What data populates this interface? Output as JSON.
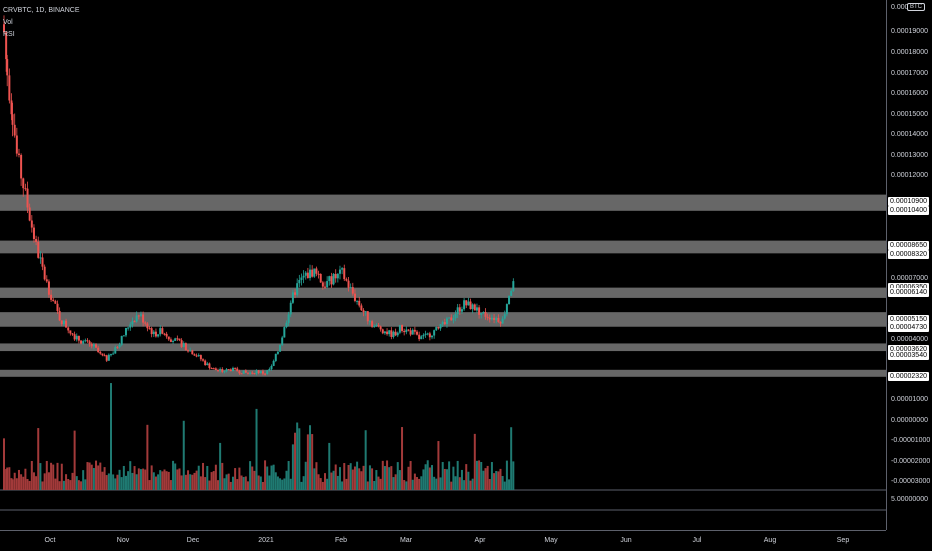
{
  "legend": {
    "symbol_line": "CRVBTC, 1D, BINANCE",
    "volume_label": "Vol",
    "rsi_label": "RSI"
  },
  "currency_badge": "BTC",
  "price_axis": {
    "ticks": [
      "0.00019000",
      "0.00018000",
      "0.00017000",
      "0.00016000",
      "0.00015000",
      "0.00014000",
      "0.00013000",
      "0.00012000",
      "0.00007000",
      "0.00004000",
      "0.00001000",
      "0.00000000",
      "-0.00001000",
      "-0.00002000",
      "-0.00003000",
      "5.00000000"
    ],
    "top_label": "0.0002",
    "highlighted": [
      "0.00010900",
      "0.00010400",
      "0.00008650",
      "0.00008320",
      "0.00006350",
      "0.00006140",
      "0.00005150",
      "0.00004730",
      "0.00003620",
      "0.00003540",
      "0.00002320"
    ]
  },
  "time_axis": [
    "Oct",
    "Nov",
    "Dec",
    "2021",
    "Feb",
    "Mar",
    "Apr",
    "May",
    "Jun",
    "Jul",
    "Aug",
    "Sep"
  ],
  "colors": {
    "up": "#26a69a",
    "down": "#ef5350",
    "zone": "#8a8a8a",
    "up_vol": "#1f7a72",
    "down_vol": "#a33a3a"
  },
  "zones": [
    {
      "top": 0.000109,
      "bottom": 0.000104
    },
    {
      "top": 8.65e-05,
      "bottom": 8.32e-05
    },
    {
      "top": 6.35e-05,
      "bottom": 6.14e-05
    },
    {
      "top": 5.15e-05,
      "bottom": 4.73e-05
    },
    {
      "top": 3.62e-05,
      "bottom": 3.54e-05
    },
    {
      "top": 2.33e-05,
      "bottom": 2.32e-05
    }
  ],
  "chart_data": {
    "type": "candlestick",
    "symbol": "CRVBTC",
    "interval": "1D",
    "exchange": "BINANCE",
    "x_categories": [
      "Oct",
      "Nov",
      "Dec",
      "2021",
      "Feb",
      "Mar",
      "Apr",
      "May",
      "Jun",
      "Jul",
      "Aug",
      "Sep"
    ],
    "close_waypoints": [
      [
        0,
        0.00019
      ],
      [
        3,
        0.00017
      ],
      [
        8,
        0.00015
      ],
      [
        12,
        0.00013
      ],
      [
        18,
        0.000115
      ],
      [
        24,
        0.0001
      ],
      [
        30,
        8.5e-05
      ],
      [
        38,
        7e-05
      ],
      [
        46,
        5.8e-05
      ],
      [
        52,
        5e-05
      ],
      [
        60,
        4.5e-05
      ],
      [
        68,
        4e-05
      ],
      [
        76,
        3.8e-05
      ],
      [
        84,
        3.6e-05
      ],
      [
        90,
        3.2e-05
      ],
      [
        96,
        3e-05
      ],
      [
        102,
        3.3e-05
      ],
      [
        110,
        4e-05
      ],
      [
        118,
        4.8e-05
      ],
      [
        126,
        5.2e-05
      ],
      [
        132,
        4.8e-05
      ],
      [
        140,
        4.2e-05
      ],
      [
        148,
        4.4e-05
      ],
      [
        156,
        4e-05
      ],
      [
        164,
        3.8e-05
      ],
      [
        172,
        3.5e-05
      ],
      [
        180,
        3.2e-05
      ],
      [
        188,
        2.8e-05
      ],
      [
        196,
        2.5e-05
      ],
      [
        204,
        2.4e-05
      ],
      [
        212,
        2.5e-05
      ],
      [
        220,
        2.4e-05
      ],
      [
        228,
        2.3e-05
      ],
      [
        236,
        2.4e-05
      ],
      [
        244,
        2.3e-05
      ],
      [
        250,
        2.6e-05
      ],
      [
        256,
        3.4e-05
      ],
      [
        262,
        4.5e-05
      ],
      [
        268,
        5.8e-05
      ],
      [
        274,
        6.6e-05
      ],
      [
        280,
        7e-05
      ],
      [
        286,
        7.2e-05
      ],
      [
        292,
        7.4e-05
      ],
      [
        298,
        6.6e-05
      ],
      [
        304,
        6.8e-05
      ],
      [
        310,
        7e-05
      ],
      [
        316,
        7.2e-05
      ],
      [
        322,
        6.6e-05
      ],
      [
        328,
        6e-05
      ],
      [
        334,
        5.5e-05
      ],
      [
        340,
        5e-05
      ],
      [
        346,
        4.6e-05
      ],
      [
        352,
        4.5e-05
      ],
      [
        358,
        4.3e-05
      ],
      [
        364,
        4.2e-05
      ],
      [
        370,
        4.5e-05
      ],
      [
        376,
        4.4e-05
      ],
      [
        382,
        4.3e-05
      ],
      [
        388,
        4e-05
      ],
      [
        394,
        4.1e-05
      ],
      [
        400,
        4.3e-05
      ],
      [
        406,
        4.5e-05
      ],
      [
        412,
        4.7e-05
      ],
      [
        418,
        5e-05
      ],
      [
        424,
        5.4e-05
      ],
      [
        430,
        5.7e-05
      ],
      [
        436,
        5.6e-05
      ],
      [
        442,
        5.4e-05
      ],
      [
        448,
        5.2e-05
      ],
      [
        454,
        5.1e-05
      ],
      [
        460,
        5e-05
      ],
      [
        466,
        4.9e-05
      ],
      [
        472,
        6.2e-05
      ],
      [
        476,
        6.8e-05
      ]
    ],
    "ylim": [
      -3e-05,
      0.0002
    ]
  }
}
